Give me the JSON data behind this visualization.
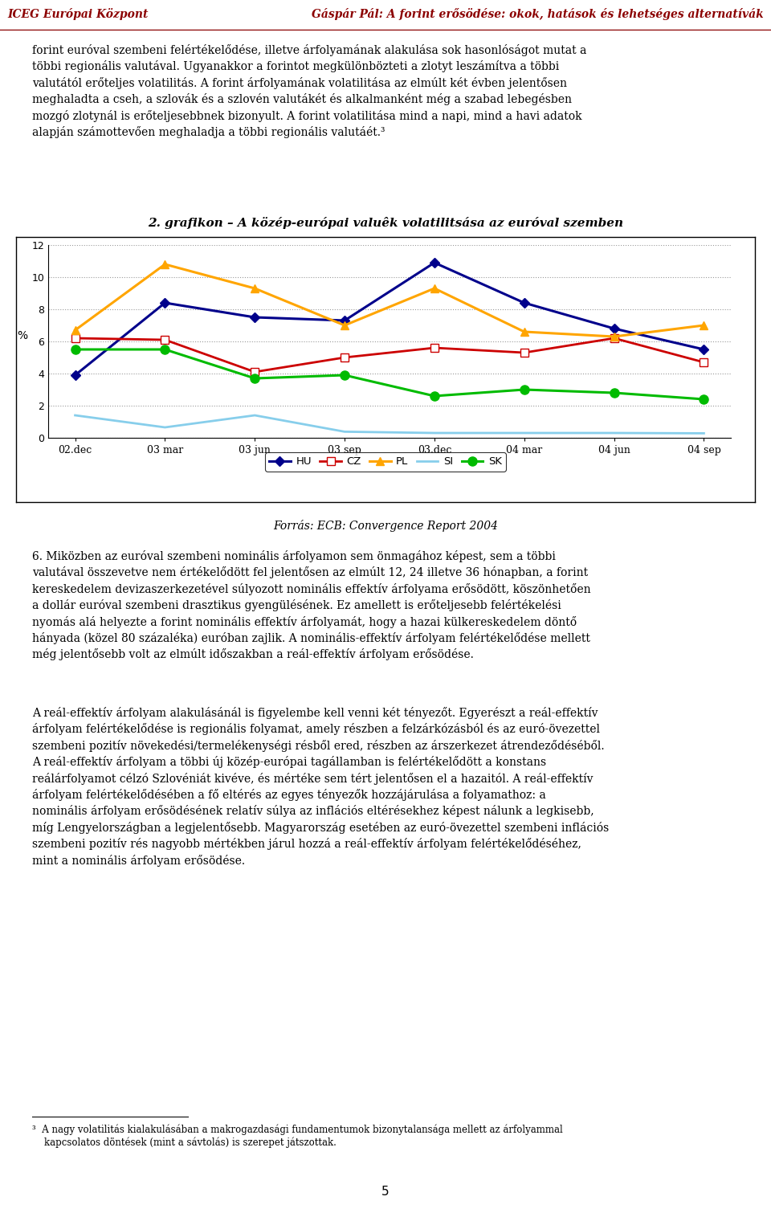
{
  "title": "2. grafikon – A közép-európai valuêk volatilitsása az euróval szemben",
  "xlabel_ticks": [
    "02.dec",
    "03 mar",
    "03 jun",
    "03 sep",
    "03.dec",
    "04 mar",
    "04 jun",
    "04 sep"
  ],
  "ylabel": "%",
  "ylim": [
    0,
    12
  ],
  "yticks": [
    0,
    2,
    4,
    6,
    8,
    10,
    12
  ],
  "source": "Forrás: ECB: Convergence Report 2004",
  "series": {
    "HU": {
      "color": "#00008B",
      "marker": "D",
      "markersize": 6,
      "linewidth": 2.2,
      "values": [
        3.9,
        8.4,
        7.5,
        7.3,
        10.9,
        8.4,
        6.8,
        5.5
      ]
    },
    "CZ": {
      "color": "#CC0000",
      "marker": "s",
      "markersize": 7,
      "linewidth": 2.0,
      "markerfacecolor": "white",
      "values": [
        6.2,
        6.1,
        4.1,
        5.0,
        5.6,
        5.3,
        6.2,
        4.7
      ]
    },
    "PL": {
      "color": "#FFA500",
      "marker": "^",
      "markersize": 7,
      "linewidth": 2.2,
      "values": [
        6.7,
        10.8,
        9.3,
        7.0,
        9.3,
        6.6,
        6.3,
        7.0
      ]
    },
    "SI": {
      "color": "#87CEEB",
      "marker": "None",
      "markersize": 0,
      "linewidth": 2.0,
      "values": [
        1.4,
        0.65,
        1.4,
        0.38,
        0.3,
        0.3,
        0.3,
        0.28
      ]
    },
    "SK": {
      "color": "#00BB00",
      "marker": "o",
      "markersize": 8,
      "linewidth": 2.2,
      "markerfacecolor": "#00BB00",
      "values": [
        5.5,
        5.5,
        3.7,
        3.9,
        2.6,
        3.0,
        2.8,
        2.4
      ]
    }
  },
  "page_header_left": "ICEG Európai Központ",
  "page_header_right": "Gáspár Pál: A forint erősödése: okok, hatások és lehetséges alternatívák",
  "page_number": "5"
}
